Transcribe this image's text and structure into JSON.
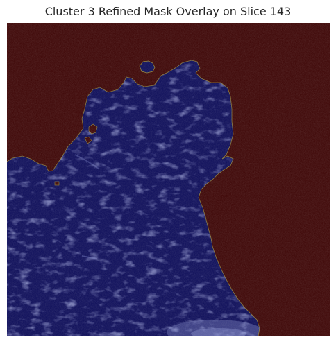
{
  "figure": {
    "title": "Cluster 3 Refined Mask Overlay on Slice 143"
  },
  "overlay": {
    "mask_color": "#0c0c5a",
    "background_color": "#3d0404",
    "boundary_color": "#9a8a3a",
    "texture_color": "#9aa6ee"
  }
}
